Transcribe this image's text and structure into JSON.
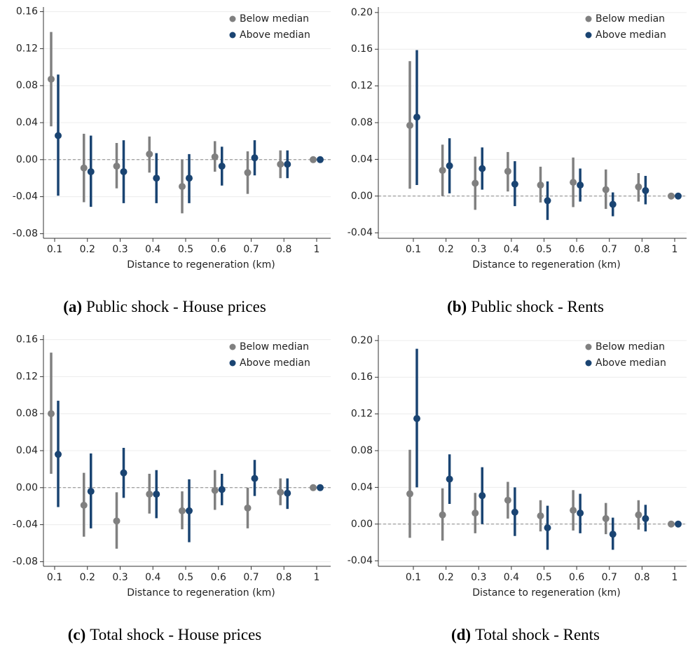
{
  "chart_data": [
    {
      "type": "errorbar",
      "caption_label": "(a)",
      "caption": "Public shock - House prices",
      "xlabel": "Distance to regeneration (km)",
      "categories": [
        "0.1",
        "0.2",
        "0.3",
        "0.4",
        "0.5",
        "0.6",
        "0.7",
        "0.8",
        "1"
      ],
      "ylim": [
        -0.085,
        0.165
      ],
      "yticks": [
        0.16,
        0.12,
        0.08,
        0.04,
        {
          "value": 0,
          "label": "0.00"
        },
        -0.04,
        -0.08
      ],
      "grid": true,
      "reference_line": 0,
      "legend": "upper right",
      "series": [
        {
          "name": "Below median",
          "color": "#808080",
          "values": [
            0.087,
            -0.009,
            -0.007,
            0.006,
            -0.029,
            0.003,
            -0.014,
            -0.005,
            0
          ],
          "lower": [
            0.036,
            -0.046,
            -0.031,
            -0.014,
            -0.058,
            -0.013,
            -0.037,
            -0.02,
            0
          ],
          "upper": [
            0.138,
            0.028,
            0.018,
            0.025,
            0.0,
            0.02,
            0.009,
            0.01,
            0
          ]
        },
        {
          "name": "Above median",
          "color": "#1a4472",
          "values": [
            0.026,
            -0.013,
            -0.013,
            -0.02,
            -0.02,
            -0.007,
            0.002,
            -0.005,
            0
          ],
          "lower": [
            -0.039,
            -0.051,
            -0.047,
            -0.047,
            -0.047,
            -0.028,
            -0.017,
            -0.02,
            0
          ],
          "upper": [
            0.092,
            0.026,
            0.021,
            0.007,
            0.006,
            0.014,
            0.021,
            0.01,
            0
          ]
        }
      ]
    },
    {
      "type": "errorbar",
      "caption_label": "(b)",
      "caption": "Public shock - Rents",
      "xlabel": "Distance to regeneration (km)",
      "categories": [
        "0.1",
        "0.2",
        "0.3",
        "0.4",
        "0.5",
        "0.6",
        "0.7",
        "0.8",
        "1"
      ],
      "ylim": [
        -0.046,
        0.206
      ],
      "yticks": [
        {
          "value": 0.2,
          "label": "0.20"
        },
        0.16,
        0.12,
        0.08,
        0.04,
        {
          "value": 0,
          "label": "0.00"
        },
        -0.04
      ],
      "grid": true,
      "reference_line": 0,
      "legend": "upper right",
      "series": [
        {
          "name": "Below median",
          "color": "#808080",
          "values": [
            0.077,
            0.028,
            0.014,
            0.027,
            0.012,
            0.015,
            0.007,
            0.01,
            0
          ],
          "lower": [
            0.008,
            0.0,
            -0.015,
            0.005,
            -0.007,
            -0.012,
            -0.014,
            -0.006,
            0
          ],
          "upper": [
            0.147,
            0.056,
            0.043,
            0.048,
            0.032,
            0.042,
            0.029,
            0.025,
            0
          ]
        },
        {
          "name": "Above median",
          "color": "#1a4472",
          "values": [
            0.086,
            0.033,
            0.03,
            0.013,
            -0.005,
            0.012,
            -0.009,
            0.006,
            0
          ],
          "lower": [
            0.012,
            0.003,
            0.007,
            -0.011,
            -0.026,
            -0.006,
            -0.022,
            -0.009,
            0
          ],
          "upper": [
            0.159,
            0.063,
            0.053,
            0.038,
            0.016,
            0.03,
            0.004,
            0.022,
            0
          ]
        }
      ]
    },
    {
      "type": "errorbar",
      "caption_label": "(c)",
      "caption": "Total shock - House prices",
      "xlabel": "Distance to regeneration (km)",
      "categories": [
        "0.1",
        "0.2",
        "0.3",
        "0.4",
        "0.5",
        "0.6",
        "0.7",
        "0.8",
        "1"
      ],
      "ylim": [
        -0.085,
        0.165
      ],
      "yticks": [
        0.16,
        0.12,
        0.08,
        0.04,
        {
          "value": 0,
          "label": "0.00"
        },
        -0.04,
        -0.08
      ],
      "grid": true,
      "reference_line": 0,
      "legend": "upper right",
      "series": [
        {
          "name": "Below median",
          "color": "#808080",
          "values": [
            0.08,
            -0.019,
            -0.036,
            -0.007,
            -0.025,
            -0.003,
            -0.022,
            -0.005,
            0
          ],
          "lower": [
            0.015,
            -0.053,
            -0.066,
            -0.028,
            -0.045,
            -0.024,
            -0.044,
            -0.019,
            0
          ],
          "upper": [
            0.146,
            0.016,
            -0.005,
            0.015,
            -0.004,
            0.019,
            0.0,
            0.01,
            0
          ]
        },
        {
          "name": "Above median",
          "color": "#1a4472",
          "values": [
            0.036,
            -0.004,
            0.016,
            -0.007,
            -0.025,
            -0.002,
            0.01,
            -0.006,
            0
          ],
          "lower": [
            -0.021,
            -0.044,
            -0.011,
            -0.033,
            -0.059,
            -0.019,
            -0.009,
            -0.023,
            0
          ],
          "upper": [
            0.094,
            0.037,
            0.043,
            0.019,
            0.009,
            0.015,
            0.03,
            0.01,
            0
          ]
        }
      ]
    },
    {
      "type": "errorbar",
      "caption_label": "(d)",
      "caption": "Total shock - Rents",
      "xlabel": "Distance to regeneration (km)",
      "categories": [
        "0.1",
        "0.2",
        "0.3",
        "0.4",
        "0.5",
        "0.6",
        "0.7",
        "0.8",
        "1"
      ],
      "ylim": [
        -0.046,
        0.206
      ],
      "yticks": [
        {
          "value": 0.2,
          "label": "0.20"
        },
        0.16,
        0.12,
        0.08,
        0.04,
        {
          "value": 0,
          "label": "0.00"
        },
        -0.04
      ],
      "grid": true,
      "reference_line": 0,
      "legend": "upper right",
      "series": [
        {
          "name": "Below median",
          "color": "#808080",
          "values": [
            0.033,
            0.01,
            0.012,
            0.026,
            0.009,
            0.015,
            0.006,
            0.01,
            0
          ],
          "lower": [
            -0.015,
            -0.018,
            -0.01,
            0.006,
            -0.008,
            -0.007,
            -0.011,
            -0.006,
            0
          ],
          "upper": [
            0.081,
            0.039,
            0.034,
            0.046,
            0.026,
            0.037,
            0.023,
            0.026,
            0
          ]
        },
        {
          "name": "Above median",
          "color": "#1a4472",
          "values": [
            0.115,
            0.049,
            0.031,
            0.013,
            -0.004,
            0.012,
            -0.011,
            0.006,
            0
          ],
          "lower": [
            0.04,
            0.022,
            0.0,
            -0.013,
            -0.028,
            -0.01,
            -0.028,
            -0.008,
            0
          ],
          "upper": [
            0.191,
            0.076,
            0.062,
            0.04,
            0.02,
            0.033,
            0.007,
            0.021,
            0
          ]
        }
      ]
    }
  ]
}
